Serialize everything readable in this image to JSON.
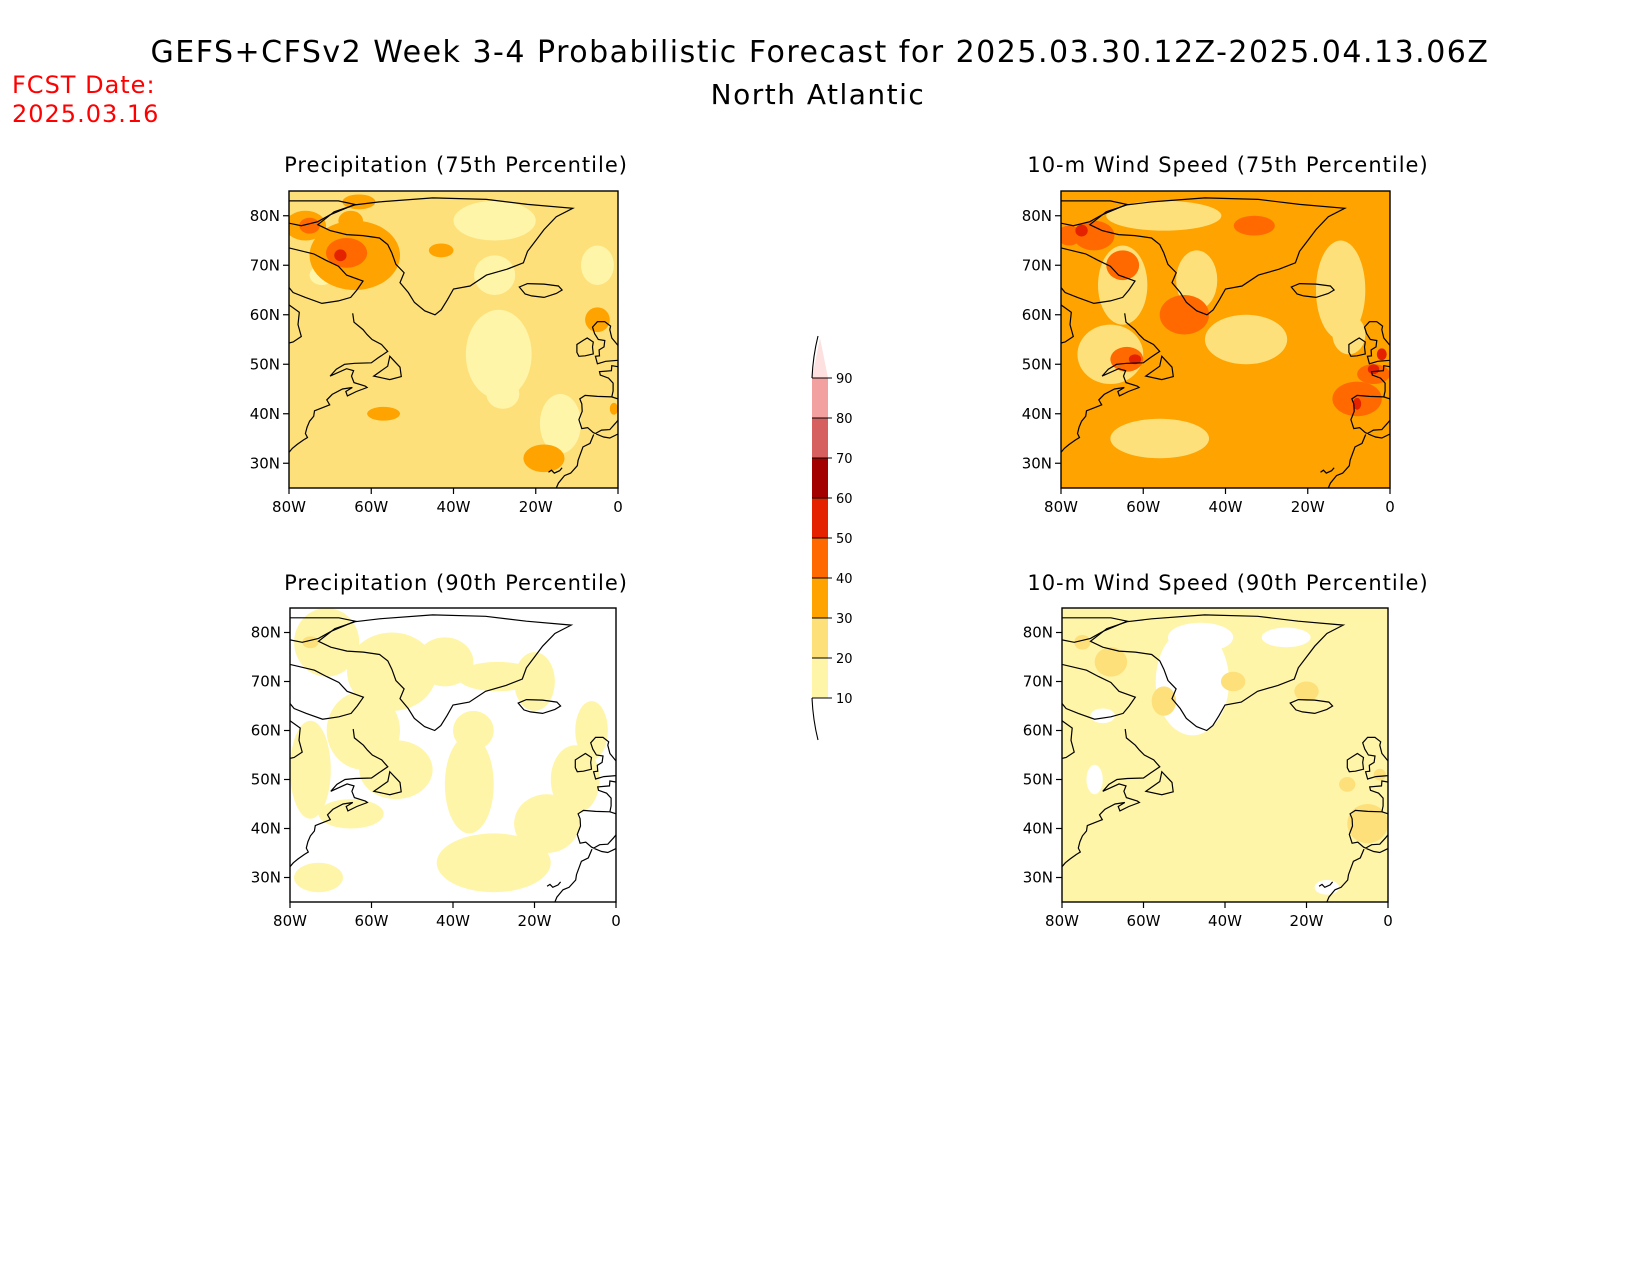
{
  "header": {
    "title": "GEFS+CFSv2 Week 3-4 Probabilistic Forecast for 2025.03.30.12Z-2025.04.13.06Z",
    "subtitle": "North Atlantic",
    "fcst_label": "FCST Date:",
    "fcst_date": "2025.03.16"
  },
  "panels": [
    {
      "title": "Precipitation (75th Percentile)",
      "base_level": 20
    },
    {
      "title": "10-m Wind Speed (75th Percentile)",
      "base_level": 30
    },
    {
      "title": "Precipitation (90th Percentile)",
      "base_level": 0
    },
    {
      "title": "10-m Wind Speed (90th Percentile)",
      "base_level": 10
    }
  ],
  "axes": {
    "lat_labels": [
      "30N",
      "40N",
      "50N",
      "60N",
      "70N",
      "80N"
    ],
    "lon_labels": [
      "80W",
      "60W",
      "40W",
      "20W",
      "0"
    ],
    "lat_range": [
      25,
      85
    ],
    "lon_range": [
      -80,
      0
    ]
  },
  "colorbar": {
    "levels": [
      "10",
      "20",
      "30",
      "40",
      "50",
      "60",
      "70",
      "80",
      "90"
    ],
    "colors": [
      "#ffffff",
      "#fff5a8",
      "#fde07a",
      "#fea300",
      "#ff6900",
      "#e42200",
      "#a30000",
      "#d66060",
      "#f3a0a0",
      "#fde0e0"
    ]
  }
}
